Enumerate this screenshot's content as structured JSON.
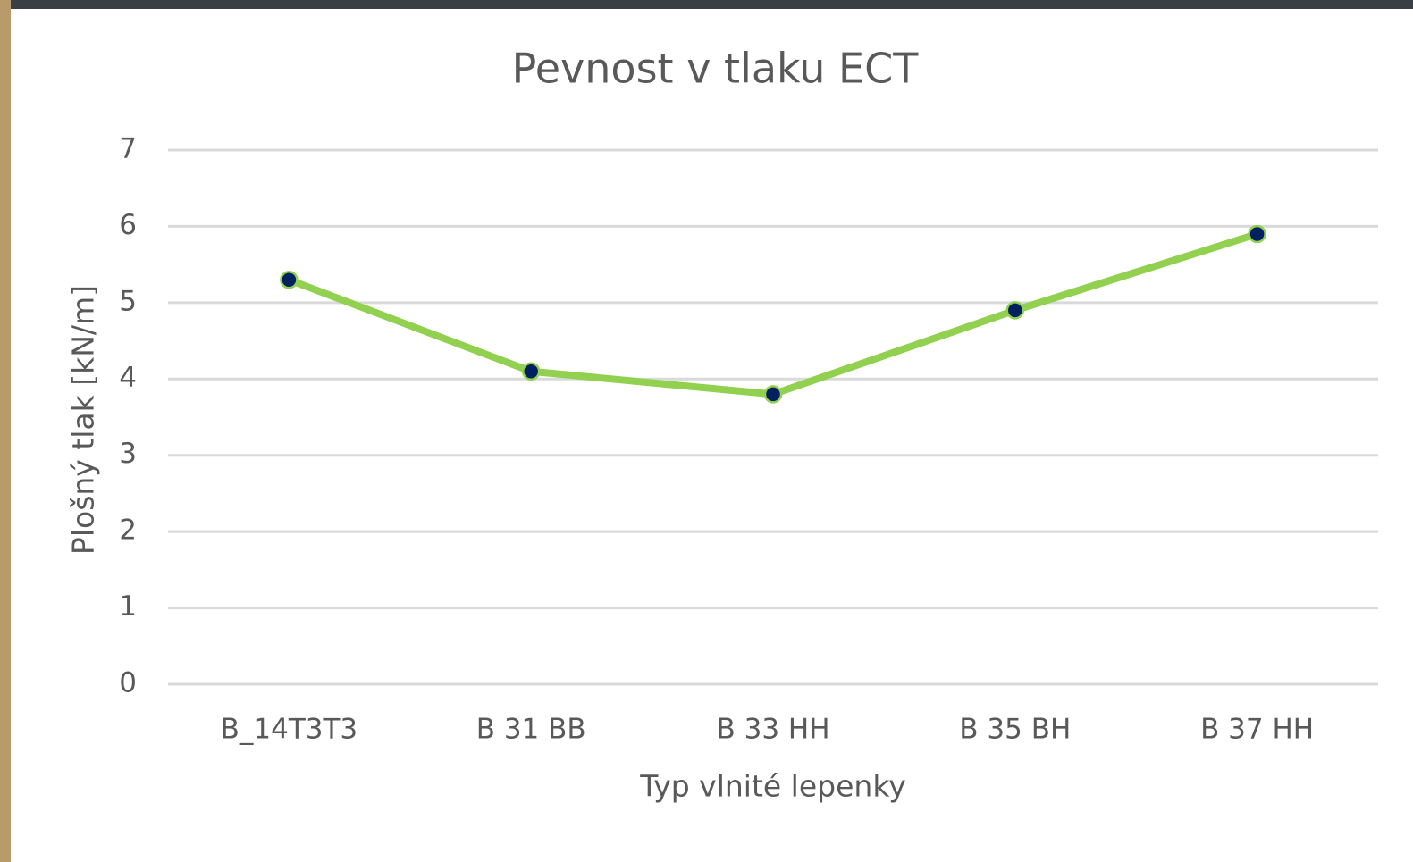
{
  "chart_data": {
    "type": "line",
    "title": "Pevnost v tlaku ECT",
    "x_label": "Typ vlnité lepenky",
    "y_label": "Plošný tlak [kN/m]",
    "categories": [
      "B_14T3T3",
      "B 31 BB",
      "B 33 HH",
      "B 35 BH",
      "B 37 HH"
    ],
    "series": [
      {
        "name": "Pevnost v tlaku ECT",
        "color": "#92d050",
        "marker_color": "#002060",
        "values": [
          5.3,
          4.1,
          3.8,
          4.9,
          5.9
        ]
      }
    ],
    "ylim": [
      0,
      7
    ],
    "yticks": [
      0,
      1,
      2,
      3,
      4,
      5,
      6,
      7
    ],
    "grid": true
  }
}
